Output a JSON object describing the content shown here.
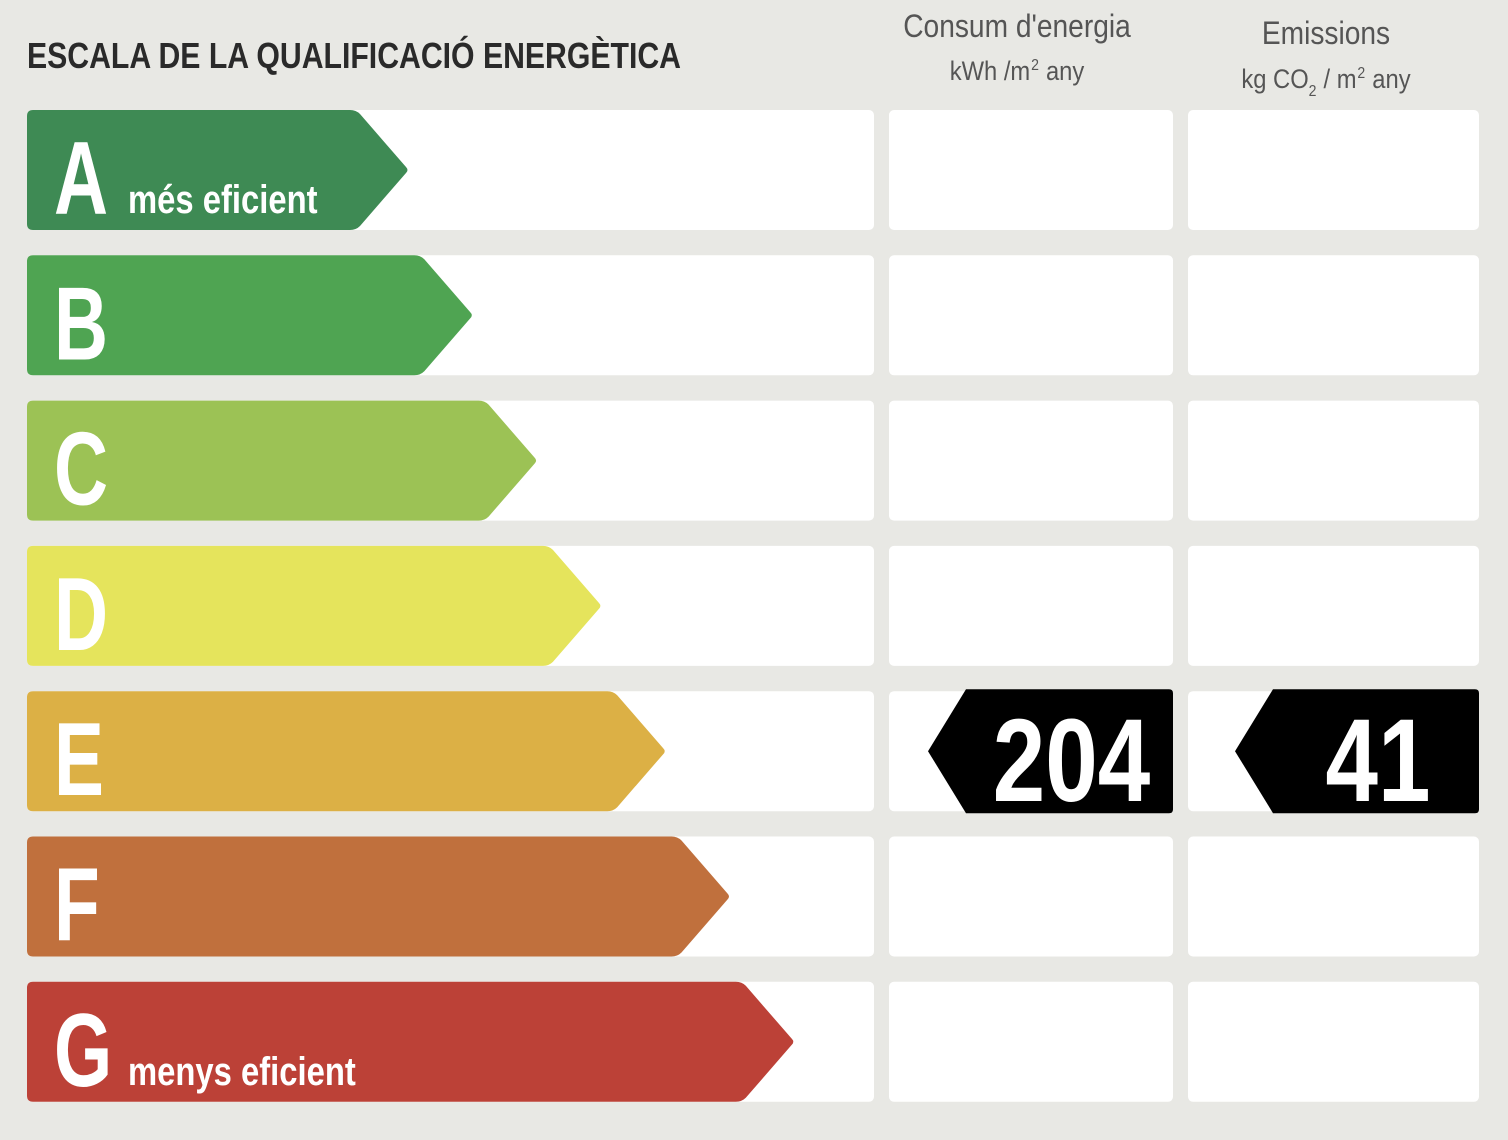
{
  "title": "ESCALA DE LA QUALIFICACIÓ ENERGÈTICA",
  "columns": [
    {
      "title": "Consum d'energia",
      "unit": [
        {
          "text": "kWh /m",
          "shift": "baseline"
        },
        {
          "text": "2",
          "shift": "super"
        },
        {
          "text": "any",
          "shift": "baseline"
        }
      ]
    },
    {
      "title": "Emissions",
      "unit": [
        {
          "text": "kg CO",
          "shift": "baseline"
        },
        {
          "text": "2",
          "shift": "sub"
        },
        {
          "text": "/ m",
          "shift": "baseline"
        },
        {
          "text": "2",
          "shift": "super"
        },
        {
          "text": "any",
          "shift": "baseline"
        }
      ]
    }
  ],
  "rows": [
    {
      "letter": "A",
      "label": "més eficient",
      "color": "#3e8a54"
    },
    {
      "letter": "B",
      "color": "#4fa452"
    },
    {
      "letter": "C",
      "color": "#9cc255"
    },
    {
      "letter": "D",
      "color": "#e5e45c"
    },
    {
      "letter": "E",
      "color": "#dcb045",
      "values": [
        204,
        41
      ]
    },
    {
      "letter": "F",
      "color": "#c0703d"
    },
    {
      "letter": "G",
      "label": "menys eficient",
      "color": "#bc4137"
    }
  ]
}
